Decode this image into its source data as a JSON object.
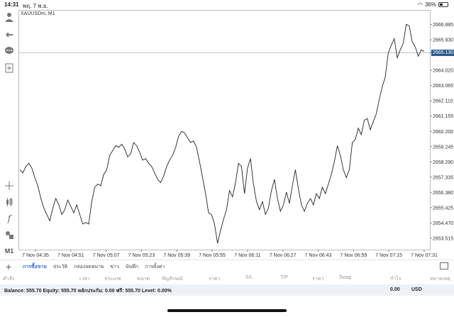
{
  "status": {
    "time": "14:31",
    "date": "พฤ. 7 พ.ย.",
    "battery": "36%",
    "battery_level": 0.36
  },
  "chart": {
    "symbol": "XAUUSDm, M1",
    "current_price": "2665.130",
    "line_color": "#222222",
    "grid_color": "#d8d8d8",
    "price_tag_color": "#2f5a8a"
  },
  "chart_data": {
    "type": "line",
    "title": "XAUUSDm, M1",
    "xlabel": "",
    "ylabel": "",
    "ylim": [
      2652.8,
      2667.8
    ],
    "y_ticks": [
      "2666.885",
      "2665.930",
      "2665.130",
      "2664.020",
      "2663.065",
      "2662.110",
      "2661.155",
      "2660.200",
      "2659.245",
      "2658.290",
      "2657.335",
      "2656.380",
      "2655.425",
      "2654.470",
      "2653.515"
    ],
    "x_ticks": [
      "7 Nov 04:35",
      "7 Nov 04:51",
      "7 Nov 05:07",
      "7 Nov 05:23",
      "7 Nov 05:39",
      "7 Nov 05:55",
      "7 Nov 06:11",
      "7 Nov 06:27",
      "7 Nov 06:43",
      "7 Nov 06:59",
      "7 Nov 07:15",
      "7 Nov 07:31"
    ],
    "series": [
      {
        "values": [
          2657.8,
          2657.6,
          2658.0,
          2658.2,
          2657.9,
          2657.3,
          2656.8,
          2656.0,
          2655.4,
          2655.0,
          2654.6,
          2655.4,
          2656.0,
          2655.6,
          2655.0,
          2655.3,
          2655.9,
          2655.5,
          2655.1,
          2655.6,
          2655.0,
          2654.4,
          2654.5,
          2654.4,
          2655.8,
          2656.7,
          2656.9,
          2656.8,
          2657.5,
          2657.8,
          2658.7,
          2659.0,
          2659.3,
          2659.2,
          2659.4,
          2659.1,
          2658.6,
          2658.8,
          2659.5,
          2659.3,
          2658.9,
          2658.4,
          2658.5,
          2658.2,
          2658.0,
          2657.6,
          2657.2,
          2657.0,
          2657.4,
          2658.0,
          2658.4,
          2658.7,
          2659.2,
          2659.9,
          2660.2,
          2660.1,
          2659.8,
          2659.5,
          2659.6,
          2659.2,
          2658.3,
          2657.3,
          2656.3,
          2655.1,
          2655.0,
          2654.4,
          2653.2,
          2654.0,
          2654.7,
          2655.3,
          2656.5,
          2656.1,
          2657.0,
          2658.2,
          2658.0,
          2656.3,
          2657.9,
          2658.5,
          2656.9,
          2655.8,
          2655.3,
          2655.8,
          2655.0,
          2655.4,
          2656.5,
          2657.2,
          2656.0,
          2655.2,
          2655.6,
          2656.4,
          2655.7,
          2656.8,
          2657.8,
          2656.6,
          2655.6,
          2655.2,
          2655.7,
          2656.0,
          2655.6,
          2656.3,
          2656.0,
          2656.7,
          2656.3,
          2656.9,
          2657.5,
          2658.3,
          2659.3,
          2658.7,
          2657.8,
          2657.3,
          2657.8,
          2659.5,
          2659.7,
          2660.4,
          2660.0,
          2660.9,
          2661.0,
          2660.3,
          2660.8,
          2661.3,
          2662.2,
          2663.0,
          2663.6,
          2665.1,
          2665.6,
          2666.0,
          2664.8,
          2665.3,
          2665.7,
          2666.9,
          2666.8,
          2665.8,
          2665.5,
          2664.9,
          2665.3,
          2665.2
        ]
      }
    ],
    "grid": true
  },
  "toolbar": {
    "timeframe": "M1",
    "icons": [
      "account-icon",
      "trade-icon",
      "chat-icon",
      "add-document-icon",
      "crosshair-icon",
      "candlestick-icon",
      "function-icon",
      "objects-icon"
    ]
  },
  "tabs": [
    {
      "label": "การซื้อขาย",
      "active": true
    },
    {
      "label": "ประวัติ",
      "active": false
    },
    {
      "label": "กล่องจดหมาย",
      "active": false
    },
    {
      "label": "ข่าว",
      "active": false
    },
    {
      "label": "บันทึก",
      "active": false
    },
    {
      "label": "การตั้งค่า",
      "active": false
    }
  ],
  "columns": [
    "คำสั่ง",
    "เวลา",
    "ประเภท",
    "ขนาด",
    "สัญลักษณ์",
    "ราคา",
    "S/L",
    "T/P",
    "ราคา",
    "Swap",
    "กำไร",
    "หมายเหตุ"
  ],
  "balance": {
    "text": "Balance: 555.70 Equity: 555.70 หลักประกัน: 0.00 ฟรี: 555.70 Level: 0.00%",
    "total": "0.00",
    "currency": "USD"
  }
}
